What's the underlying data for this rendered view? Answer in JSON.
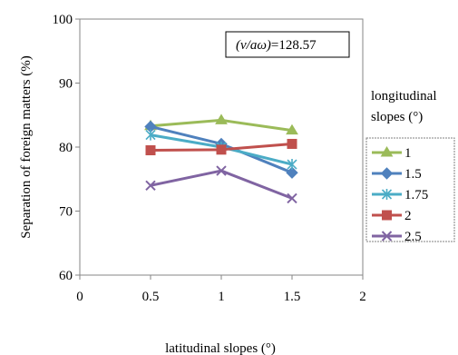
{
  "chart_data": {
    "type": "line",
    "xlabel": "latitudinal slopes (°)",
    "ylabel": "Separation of foreign matters (%)",
    "xlim": [
      0,
      2
    ],
    "ylim": [
      60,
      100
    ],
    "xticks": [
      0,
      0.5,
      1,
      1.5,
      2
    ],
    "xtick_labels": [
      "0",
      "0.5",
      "1",
      "1.5",
      "2"
    ],
    "yticks": [
      60,
      70,
      80,
      90,
      100
    ],
    "ytick_labels": [
      "60",
      "70",
      "80",
      "90",
      "100"
    ],
    "grid": false,
    "annotation_prefix": "(v/aω)",
    "annotation_value": "=128.57",
    "legend_title_line1": "longitudinal",
    "legend_title_line2": "slopes (°)",
    "legend_position": "right",
    "x": [
      0.5,
      1,
      1.5
    ],
    "series": [
      {
        "name": "1",
        "values": [
          83.3,
          84.2,
          82.6
        ],
        "color": "#9bbb59",
        "marker": "triangle"
      },
      {
        "name": "1.5",
        "values": [
          83.2,
          80.5,
          76.0
        ],
        "color": "#4f81bd",
        "marker": "diamond"
      },
      {
        "name": "1.75",
        "values": [
          81.9,
          80.0,
          77.3
        ],
        "color": "#4bacc6",
        "marker": "asterisk"
      },
      {
        "name": "2",
        "values": [
          79.5,
          79.6,
          80.5
        ],
        "color": "#c0504d",
        "marker": "square"
      },
      {
        "name": "2.5",
        "values": [
          74.0,
          76.3,
          72.0
        ],
        "color": "#8064a2",
        "marker": "x"
      }
    ]
  }
}
